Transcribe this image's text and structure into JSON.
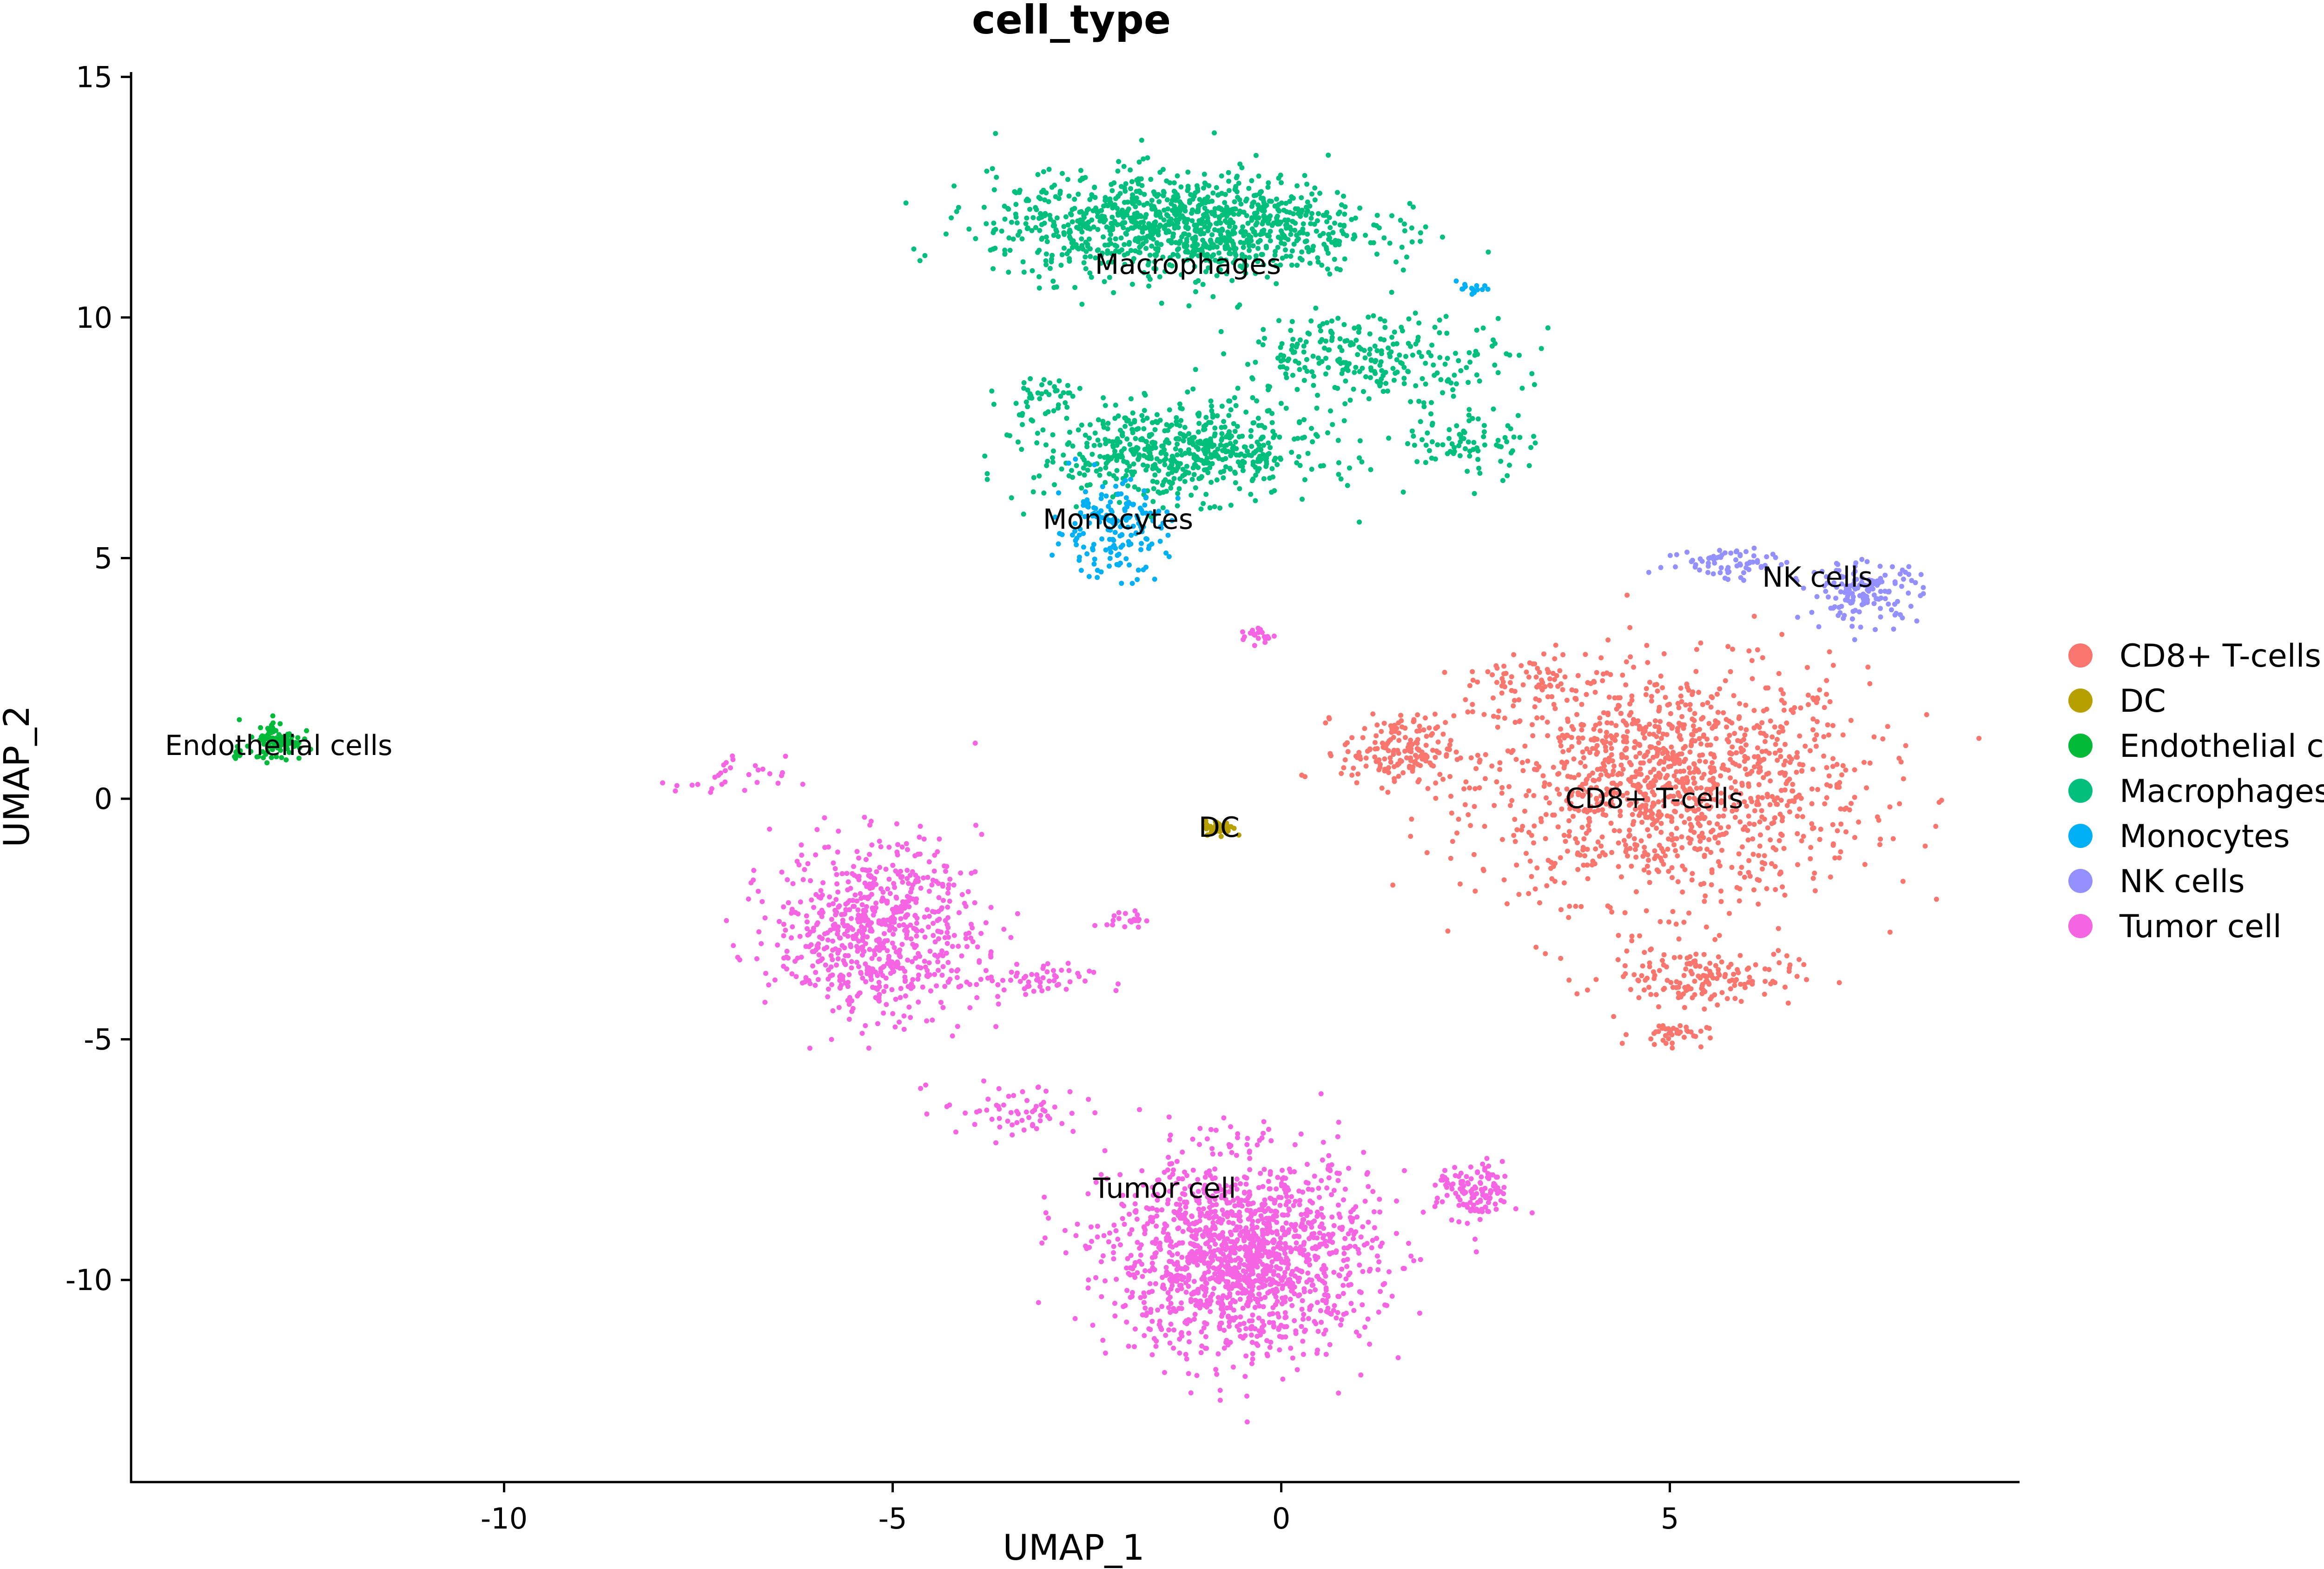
{
  "chart_data": {
    "type": "scatter",
    "title": "cell_type",
    "xlabel": "UMAP_1",
    "ylabel": "UMAP_2",
    "xlim": [
      -14.8,
      9.5
    ],
    "ylim": [
      -14.2,
      15.1
    ],
    "xticks": [
      -10,
      -5,
      0,
      5
    ],
    "xtick_labels": [
      "-10",
      "-5",
      "0",
      "5"
    ],
    "yticks": [
      15,
      10,
      5,
      0,
      -5,
      -10
    ],
    "ytick_labels": [
      "15",
      "10",
      "5",
      "0",
      "-5",
      "-10"
    ],
    "grid": false,
    "legend_position": "right",
    "series": [
      {
        "name": "CD8+ T-cells",
        "color": "#F8766D",
        "label_at": [
          4.8,
          0.0
        ],
        "clusters": [
          {
            "x": 5.0,
            "y": 0.3,
            "sx": 2.1,
            "sy": 2.0,
            "n": 1300
          },
          {
            "x": 5.4,
            "y": -3.7,
            "sx": 1.0,
            "sy": 0.5,
            "n": 160
          },
          {
            "x": 5.0,
            "y": -4.9,
            "sx": 0.4,
            "sy": 0.2,
            "n": 40
          },
          {
            "x": 1.5,
            "y": 1.0,
            "sx": 0.6,
            "sy": 0.6,
            "n": 170
          },
          {
            "x": 3.2,
            "y": 2.5,
            "sx": 0.7,
            "sy": 0.4,
            "n": 60
          }
        ]
      },
      {
        "name": "DC",
        "color": "#B79F00",
        "label_at": [
          -0.8,
          -0.6
        ],
        "clusters": [
          {
            "x": -0.8,
            "y": -0.6,
            "sx": 0.15,
            "sy": 0.12,
            "n": 60
          }
        ]
      },
      {
        "name": "Endothelial cells",
        "color": "#00BA38",
        "label_at": [
          -12.9,
          1.1
        ],
        "clusters": [
          {
            "x": -12.9,
            "y": 1.2,
            "sx": 0.25,
            "sy": 0.35,
            "n": 90
          },
          {
            "x": -13.4,
            "y": 1.0,
            "sx": 0.15,
            "sy": 0.1,
            "n": 12
          }
        ]
      },
      {
        "name": "Macrophages",
        "color": "#00BF7D",
        "label_at": [
          -1.2,
          11.1
        ],
        "clusters": [
          {
            "x": -1.3,
            "y": 11.9,
            "sx": 2.0,
            "sy": 0.9,
            "n": 1100
          },
          {
            "x": -1.3,
            "y": 7.2,
            "sx": 1.5,
            "sy": 0.8,
            "n": 600
          },
          {
            "x": 1.2,
            "y": 9.2,
            "sx": 1.5,
            "sy": 0.7,
            "n": 260
          },
          {
            "x": 2.4,
            "y": 7.4,
            "sx": 0.7,
            "sy": 0.6,
            "n": 80
          },
          {
            "x": -3.0,
            "y": 8.4,
            "sx": 0.5,
            "sy": 0.4,
            "n": 40
          }
        ]
      },
      {
        "name": "Monocytes",
        "color": "#00B0F6",
        "label_at": [
          -2.1,
          5.8
        ],
        "clusters": [
          {
            "x": -2.2,
            "y": 5.6,
            "sx": 0.6,
            "sy": 0.8,
            "n": 180
          },
          {
            "x": 2.4,
            "y": 10.6,
            "sx": 0.25,
            "sy": 0.1,
            "n": 15
          }
        ]
      },
      {
        "name": "NK cells",
        "color": "#9590FF",
        "label_at": [
          6.9,
          4.6
        ],
        "clusters": [
          {
            "x": 7.5,
            "y": 4.3,
            "sx": 0.6,
            "sy": 0.5,
            "n": 150
          },
          {
            "x": 5.8,
            "y": 4.9,
            "sx": 0.7,
            "sy": 0.3,
            "n": 70
          }
        ]
      },
      {
        "name": "Tumor cell",
        "color": "#F564E3",
        "label_at": [
          -1.5,
          -8.1
        ],
        "clusters": [
          {
            "x": -0.5,
            "y": -9.5,
            "sx": 1.4,
            "sy": 1.7,
            "n": 1500
          },
          {
            "x": -5.2,
            "y": -2.7,
            "sx": 1.1,
            "sy": 1.5,
            "n": 700
          },
          {
            "x": 2.5,
            "y": -8.2,
            "sx": 0.4,
            "sy": 0.5,
            "n": 120
          },
          {
            "x": -3.3,
            "y": -3.8,
            "sx": 0.7,
            "sy": 0.3,
            "n": 60
          },
          {
            "x": -7.1,
            "y": 0.4,
            "sx": 0.6,
            "sy": 0.4,
            "n": 30
          },
          {
            "x": -3.4,
            "y": -6.5,
            "sx": 0.8,
            "sy": 0.5,
            "n": 60
          },
          {
            "x": -2.0,
            "y": -2.5,
            "sx": 0.2,
            "sy": 0.15,
            "n": 20
          },
          {
            "x": -0.3,
            "y": 3.4,
            "sx": 0.2,
            "sy": 0.15,
            "n": 20
          }
        ]
      }
    ]
  }
}
